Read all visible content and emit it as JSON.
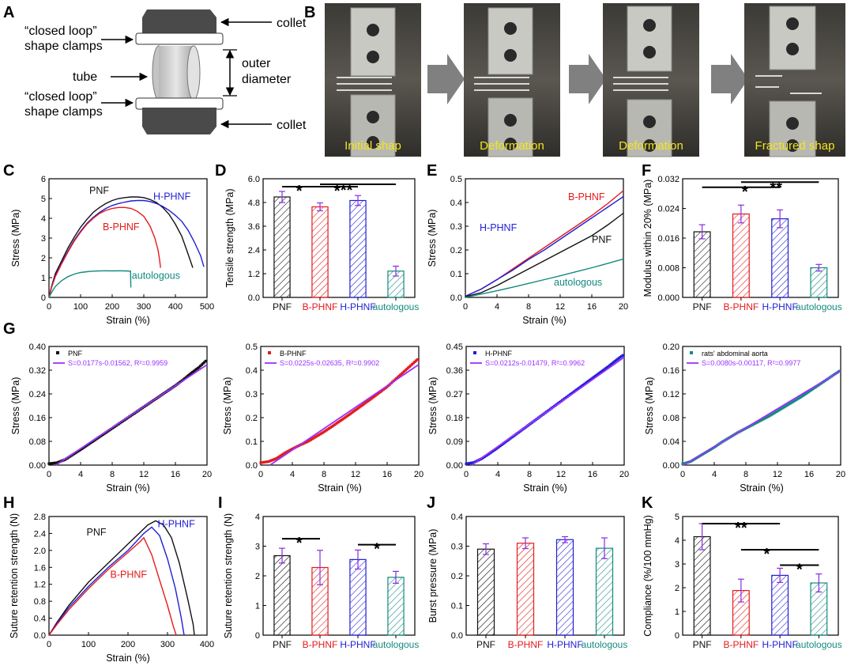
{
  "colors": {
    "PNF": "#111111",
    "B-PHNF": "#e41a1c",
    "H-PHNF": "#1f1fd6",
    "autologous": "#138a80",
    "fit": "#9b30ff",
    "errbar": "#8a2be2"
  },
  "panel_letters": {
    "A": "A",
    "B": "B",
    "C": "C",
    "D": "D",
    "E": "E",
    "F": "F",
    "G": "G",
    "H": "H",
    "I": "I",
    "J": "J",
    "K": "K"
  },
  "schematic": {
    "collet_top": "collet",
    "collet_bottom": "collet",
    "clamps_top_l1": "“closed loop”",
    "clamps_top_l2": "shape clamps",
    "clamps_bottom_l1": "“closed loop”",
    "clamps_bottom_l2": "shape clamps",
    "tube": "tube",
    "outer_l1": "outer",
    "outer_l2": "diameter"
  },
  "photos": {
    "captions": [
      "Initial shap",
      "Deformation",
      "Deformation",
      "Fractured shap"
    ]
  },
  "chart_data": [
    {
      "id": "C",
      "type": "line",
      "xlabel": "Strain (%)",
      "ylabel": "Stress (MPa)",
      "xlim": [
        0,
        500
      ],
      "ylim": [
        0,
        6
      ],
      "xticks": [
        "0",
        "100",
        "200",
        "300",
        "400",
        "500"
      ],
      "yticks": [
        "0",
        "1",
        "2",
        "3",
        "4",
        "5",
        "6"
      ],
      "series": [
        {
          "name": "PNF",
          "label": "PNF",
          "x": [
            0,
            8,
            20,
            40,
            60,
            80,
            100,
            120,
            140,
            160,
            180,
            200,
            220,
            240,
            260,
            280,
            300,
            320,
            340,
            360,
            380,
            400,
            420,
            440,
            455
          ],
          "y": [
            0,
            0.55,
            1.2,
            1.85,
            2.5,
            3.05,
            3.55,
            3.95,
            4.3,
            4.55,
            4.75,
            4.9,
            5.0,
            5.05,
            5.08,
            5.08,
            5.05,
            4.95,
            4.8,
            4.55,
            4.2,
            3.7,
            3.1,
            2.2,
            1.5
          ]
        },
        {
          "name": "H-PHNF",
          "label": "H-PHNF",
          "x": [
            0,
            8,
            20,
            40,
            60,
            80,
            100,
            120,
            140,
            160,
            180,
            200,
            220,
            240,
            260,
            280,
            300,
            320,
            340,
            360,
            380,
            400,
            420,
            440,
            460,
            480,
            490
          ],
          "y": [
            0,
            0.5,
            1.1,
            1.75,
            2.35,
            2.9,
            3.35,
            3.75,
            4.05,
            4.3,
            4.5,
            4.65,
            4.75,
            4.82,
            4.88,
            4.9,
            4.9,
            4.85,
            4.75,
            4.6,
            4.4,
            4.15,
            3.85,
            3.4,
            2.8,
            2.1,
            1.55
          ]
        },
        {
          "name": "B-PHNF",
          "label": "B-PHNF",
          "x": [
            0,
            8,
            20,
            40,
            60,
            80,
            100,
            120,
            140,
            160,
            180,
            200,
            220,
            240,
            260,
            280,
            300,
            320,
            335,
            345,
            350,
            353
          ],
          "y": [
            0,
            0.5,
            1.05,
            1.7,
            2.3,
            2.85,
            3.3,
            3.7,
            4.0,
            4.25,
            4.4,
            4.5,
            4.55,
            4.55,
            4.5,
            4.35,
            4.1,
            3.6,
            3.0,
            2.4,
            1.9,
            1.5
          ]
        },
        {
          "name": "autologous",
          "label": "autologous",
          "x": [
            0,
            10,
            20,
            40,
            60,
            80,
            100,
            120,
            140,
            160,
            180,
            200,
            220,
            240,
            258,
            259
          ],
          "y": [
            0,
            0.3,
            0.55,
            0.85,
            1.05,
            1.18,
            1.26,
            1.3,
            1.33,
            1.34,
            1.35,
            1.34,
            1.35,
            1.34,
            1.33,
            0.5
          ]
        }
      ]
    },
    {
      "id": "D",
      "type": "bar",
      "ylabel": "Tensile strength (MPa)",
      "ylim": [
        0,
        6
      ],
      "yticks": [
        "0.0",
        "1.2",
        "2.4",
        "3.6",
        "4.8",
        "6.0"
      ],
      "categories": [
        "PNF",
        "B-PHNF",
        "H-PHNF",
        "autologous"
      ],
      "values": [
        5.08,
        4.58,
        4.9,
        1.33
      ],
      "errors": [
        0.28,
        0.2,
        0.25,
        0.25
      ],
      "significance": [
        {
          "label": "*"
        },
        {
          "label": "*"
        },
        {
          "label": "**"
        }
      ]
    },
    {
      "id": "E",
      "type": "line",
      "xlabel": "Strain (%)",
      "ylabel": "Stress (MPa)",
      "xlim": [
        0,
        20
      ],
      "ylim": [
        0,
        0.5
      ],
      "xticks": [
        "0",
        "4",
        "8",
        "12",
        "16",
        "20"
      ],
      "yticks": [
        "0.0",
        "0.1",
        "0.2",
        "0.3",
        "0.4",
        "0.5"
      ],
      "series": [
        {
          "name": "B-PHNF",
          "label": "B-PHNF",
          "x": [
            0,
            2,
            4,
            6,
            8,
            10,
            12,
            14,
            16,
            18,
            20
          ],
          "y": [
            0.005,
            0.035,
            0.075,
            0.12,
            0.165,
            0.21,
            0.255,
            0.3,
            0.345,
            0.395,
            0.45
          ]
        },
        {
          "name": "H-PHNF",
          "label": "H-PHNF",
          "x": [
            0,
            2,
            4,
            6,
            8,
            10,
            12,
            14,
            16,
            18,
            20
          ],
          "y": [
            0.005,
            0.035,
            0.075,
            0.115,
            0.16,
            0.2,
            0.245,
            0.29,
            0.335,
            0.38,
            0.425
          ]
        },
        {
          "name": "PNF",
          "label": "PNF",
          "x": [
            0,
            2,
            4,
            6,
            8,
            10,
            12,
            14,
            16,
            18,
            20
          ],
          "y": [
            0.003,
            0.02,
            0.05,
            0.085,
            0.12,
            0.155,
            0.19,
            0.225,
            0.26,
            0.305,
            0.355
          ]
        },
        {
          "name": "autologous",
          "label": "autologous",
          "x": [
            0,
            2,
            4,
            6,
            8,
            10,
            12,
            14,
            16,
            18,
            20
          ],
          "y": [
            0,
            0.014,
            0.028,
            0.043,
            0.059,
            0.075,
            0.091,
            0.108,
            0.125,
            0.143,
            0.162
          ]
        }
      ]
    },
    {
      "id": "F",
      "type": "bar",
      "ylabel": "Modulus within 20% (MPa)",
      "ylim": [
        0,
        0.032
      ],
      "yticks": [
        "0.000",
        "0.008",
        "0.016",
        "0.024",
        "0.032"
      ],
      "categories": [
        "PNF",
        "B-PHNF",
        "H-PHNF",
        "autologous"
      ],
      "values": [
        0.0177,
        0.0225,
        0.0212,
        0.008
      ],
      "errors": [
        0.0019,
        0.0024,
        0.0024,
        0.0009
      ],
      "significance": [
        {
          "label": "*"
        },
        {
          "label": "**"
        }
      ]
    },
    {
      "id": "G1",
      "type": "scatter",
      "xlabel": "Strain (%)",
      "ylabel": "Stress (MPa)",
      "xlim": [
        0,
        20
      ],
      "ylim": [
        0,
        0.4
      ],
      "xticks": [
        "0",
        "4",
        "8",
        "12",
        "16",
        "20"
      ],
      "yticks": [
        "0.00",
        "0.08",
        "0.16",
        "0.24",
        "0.32",
        "0.40"
      ],
      "legend": {
        "points": "PNF",
        "fit": "S=0.0177s-0.01562, R²=0.9959"
      },
      "series_name": "PNF",
      "fit": {
        "slope": 0.0177,
        "intercept": -0.01562
      },
      "x": [
        0,
        1,
        2,
        3,
        4,
        5,
        6,
        7,
        8,
        9,
        10,
        11,
        12,
        13,
        14,
        15,
        16,
        17,
        18,
        19,
        20
      ],
      "y": [
        0.005,
        0.008,
        0.018,
        0.035,
        0.052,
        0.07,
        0.088,
        0.106,
        0.124,
        0.142,
        0.16,
        0.178,
        0.196,
        0.214,
        0.232,
        0.25,
        0.268,
        0.288,
        0.31,
        0.33,
        0.355
      ]
    },
    {
      "id": "G2",
      "type": "scatter",
      "xlabel": "Strain (%)",
      "ylabel": "Stress (MPa)",
      "xlim": [
        0,
        20
      ],
      "ylim": [
        0,
        0.5
      ],
      "xticks": [
        "0",
        "4",
        "8",
        "12",
        "16",
        "20"
      ],
      "yticks": [
        "0.0",
        "0.1",
        "0.2",
        "0.3",
        "0.4",
        "0.5"
      ],
      "legend": {
        "points": "B-PHNF",
        "fit": "S=0.0225s-0.02635, R²=0.9902"
      },
      "series_name": "B-PHNF",
      "fit": {
        "slope": 0.0225,
        "intercept": -0.02635
      },
      "x": [
        0,
        1,
        2,
        3,
        4,
        5,
        6,
        7,
        8,
        9,
        10,
        11,
        12,
        13,
        14,
        15,
        16,
        17,
        18,
        19,
        20
      ],
      "y": [
        0.01,
        0.015,
        0.028,
        0.05,
        0.068,
        0.085,
        0.1,
        0.12,
        0.14,
        0.162,
        0.185,
        0.208,
        0.232,
        0.256,
        0.28,
        0.305,
        0.33,
        0.36,
        0.39,
        0.42,
        0.45
      ]
    },
    {
      "id": "G3",
      "type": "scatter",
      "xlabel": "Strain (%)",
      "ylabel": "Stress (MPa)",
      "xlim": [
        0,
        20
      ],
      "ylim": [
        0,
        0.45
      ],
      "xticks": [
        "0",
        "4",
        "8",
        "12",
        "16",
        "20"
      ],
      "yticks": [
        "0.00",
        "0.09",
        "0.18",
        "0.27",
        "0.36",
        "0.45"
      ],
      "legend": {
        "points": "H-PHNF",
        "fit": "S=0.0212s-0.01479, R²=0.9962"
      },
      "series_name": "H-PHNF",
      "fit": {
        "slope": 0.0212,
        "intercept": -0.01479
      },
      "x": [
        0,
        1,
        2,
        3,
        4,
        5,
        6,
        7,
        8,
        9,
        10,
        11,
        12,
        13,
        14,
        15,
        16,
        17,
        18,
        19,
        20
      ],
      "y": [
        0.005,
        0.01,
        0.025,
        0.045,
        0.066,
        0.088,
        0.11,
        0.132,
        0.154,
        0.176,
        0.198,
        0.22,
        0.242,
        0.264,
        0.286,
        0.308,
        0.33,
        0.352,
        0.374,
        0.398,
        0.42
      ]
    },
    {
      "id": "G4",
      "type": "scatter",
      "xlabel": "Strain (%)",
      "ylabel": "Stress (MPa)",
      "xlim": [
        0,
        20
      ],
      "ylim": [
        0,
        0.2
      ],
      "xticks": [
        "0",
        "4",
        "8",
        "12",
        "16",
        "20"
      ],
      "yticks": [
        "0.00",
        "0.04",
        "0.08",
        "0.12",
        "0.16",
        "0.20"
      ],
      "legend": {
        "points": "rats' abdominal aorta",
        "fit": "S=0.0080s-0.00117, R²=0.9977"
      },
      "series_name": "autologous",
      "fit": {
        "slope": 0.008,
        "intercept": -0.00117
      },
      "x": [
        0,
        1,
        2,
        3,
        4,
        5,
        6,
        7,
        8,
        9,
        10,
        11,
        12,
        13,
        14,
        15,
        16,
        17,
        18,
        19,
        20
      ],
      "y": [
        0.002,
        0.006,
        0.014,
        0.022,
        0.03,
        0.039,
        0.047,
        0.055,
        0.062,
        0.069,
        0.076,
        0.083,
        0.091,
        0.099,
        0.107,
        0.115,
        0.124,
        0.133,
        0.142,
        0.151,
        0.16
      ]
    },
    {
      "id": "H",
      "type": "line",
      "xlabel": "Strain (%)",
      "ylabel": "Suture retention strength (N)",
      "xlim": [
        0,
        400
      ],
      "ylim": [
        0,
        2.8
      ],
      "xticks": [
        "0",
        "100",
        "200",
        "300",
        "400"
      ],
      "yticks": [
        "0.0",
        "0.4",
        "0.8",
        "1.2",
        "1.6",
        "2.0",
        "2.4",
        "2.8"
      ],
      "series": [
        {
          "name": "PNF",
          "label": "PNF",
          "x": [
            0,
            20,
            50,
            100,
            150,
            200,
            250,
            270,
            290,
            310,
            330,
            350,
            365,
            368
          ],
          "y": [
            0,
            0.3,
            0.7,
            1.25,
            1.7,
            2.15,
            2.6,
            2.7,
            2.6,
            2.3,
            1.7,
            0.9,
            0.25,
            0
          ]
        },
        {
          "name": "H-PHNF",
          "label": "H-PHNF",
          "x": [
            0,
            20,
            50,
            100,
            150,
            200,
            240,
            260,
            280,
            300,
            320,
            335,
            342
          ],
          "y": [
            0,
            0.28,
            0.65,
            1.15,
            1.6,
            2.0,
            2.4,
            2.55,
            2.35,
            1.8,
            1.1,
            0.4,
            0
          ]
        },
        {
          "name": "B-PHNF",
          "label": "B-PHNF",
          "x": [
            0,
            20,
            50,
            100,
            150,
            200,
            230,
            240,
            260,
            280,
            300,
            315,
            322
          ],
          "y": [
            0,
            0.25,
            0.6,
            1.1,
            1.55,
            1.95,
            2.2,
            2.3,
            1.9,
            1.3,
            0.7,
            0.2,
            0
          ]
        }
      ]
    },
    {
      "id": "I",
      "type": "bar",
      "ylabel": "Suture retention strength (N)",
      "ylim": [
        0,
        4
      ],
      "yticks": [
        "0",
        "1",
        "2",
        "3",
        "4"
      ],
      "categories": [
        "PNF",
        "B-PHNF",
        "H-PHNF",
        "autologous"
      ],
      "values": [
        2.68,
        2.28,
        2.55,
        1.95
      ],
      "errors": [
        0.25,
        0.58,
        0.32,
        0.2
      ],
      "significance": [
        {
          "label": "*"
        },
        {
          "label": "*"
        }
      ]
    },
    {
      "id": "J",
      "type": "bar",
      "ylabel": "Burst pressure (MPa)",
      "ylim": [
        0,
        0.4
      ],
      "yticks": [
        "0.0",
        "0.1",
        "0.2",
        "0.3",
        "0.4"
      ],
      "categories": [
        "PNF",
        "B-PHNF",
        "H-PHNF",
        "autologous"
      ],
      "values": [
        0.29,
        0.31,
        0.322,
        0.293
      ],
      "errors": [
        0.018,
        0.018,
        0.01,
        0.035
      ],
      "significance": []
    },
    {
      "id": "K",
      "type": "bar",
      "ylabel": "Compliance (%/100 mmHg)",
      "ylim": [
        0,
        5
      ],
      "yticks": [
        "0",
        "1",
        "2",
        "3",
        "4",
        "5"
      ],
      "categories": [
        "PNF",
        "B-PHNF",
        "H-PHNF",
        "autologous"
      ],
      "values": [
        4.15,
        1.88,
        2.52,
        2.2
      ],
      "errors": [
        0.55,
        0.48,
        0.3,
        0.38
      ],
      "significance": [
        {
          "label": "**"
        },
        {
          "label": "*"
        },
        {
          "label": "*"
        }
      ]
    }
  ]
}
